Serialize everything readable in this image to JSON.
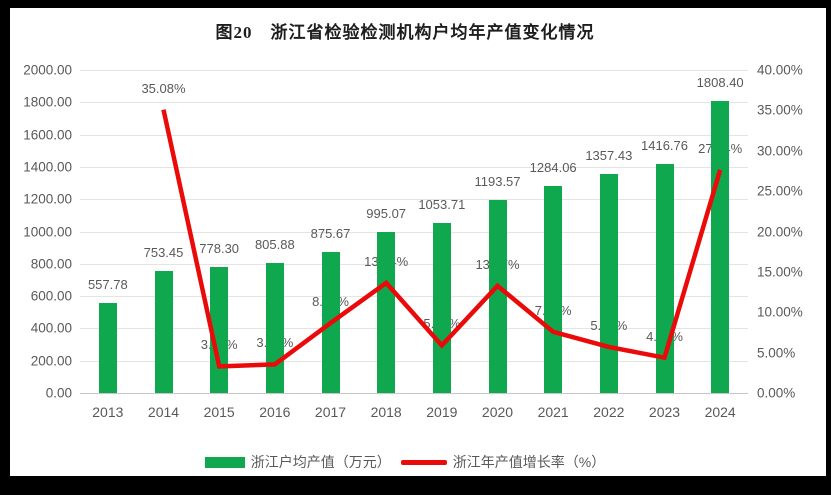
{
  "title": "图20　浙江省检验检测机构户均年产值变化情况",
  "chart_data": {
    "type": "bar",
    "subtype": "combo-bar-line-dual-axis",
    "categories": [
      "2013",
      "2014",
      "2015",
      "2016",
      "2017",
      "2018",
      "2019",
      "2020",
      "2021",
      "2022",
      "2023",
      "2024"
    ],
    "series": [
      {
        "name": "浙江户均产值（万元）",
        "type": "bar",
        "axis": "left",
        "color": "#0fa84e",
        "values": [
          557.78,
          753.45,
          778.3,
          805.88,
          875.67,
          995.07,
          1053.71,
          1193.57,
          1284.06,
          1357.43,
          1416.76,
          1808.4
        ],
        "labels": [
          "557.78",
          "753.45",
          "778.30",
          "805.88",
          "875.67",
          "995.07",
          "1053.71",
          "1193.57",
          "1284.06",
          "1357.43",
          "1416.76",
          "1808.40"
        ]
      },
      {
        "name": "浙江年产值增长率（%）",
        "type": "line",
        "axis": "right",
        "color": "#ea0a0a",
        "values": [
          null,
          35.08,
          3.3,
          3.54,
          8.66,
          13.64,
          5.89,
          13.27,
          7.58,
          5.71,
          4.37,
          27.64
        ],
        "labels": [
          null,
          "35.08%",
          "3.30%",
          "3.54%",
          "8.66%",
          "13.64%",
          "5.89%",
          "13.27%",
          "7.58%",
          "5.71%",
          "4.37%",
          "27.64%"
        ]
      }
    ],
    "title": "图20　浙江省检验检测机构户均年产值变化情况",
    "xlabel": "",
    "ylabel_left": "",
    "ylabel_right": "",
    "left_axis": {
      "min": 0,
      "max": 2000,
      "step": 200,
      "ticks": [
        "2000.00",
        "1800.00",
        "1600.00",
        "1400.00",
        "1200.00",
        "1000.00",
        "800.00",
        "600.00",
        "400.00",
        "200.00",
        "0.00"
      ]
    },
    "right_axis": {
      "min": 0,
      "max": 40,
      "step": 5,
      "ticks": [
        "40.00%",
        "35.00%",
        "30.00%",
        "25.00%",
        "20.00%",
        "15.00%",
        "10.00%",
        "5.00%",
        "0.00%"
      ]
    },
    "grid": true,
    "legend_position": "bottom"
  },
  "legend": {
    "bar_label": "浙江户均产值（万元）",
    "line_label": "浙江年产值增长率（%）"
  },
  "colors": {
    "bar": "#0fa84e",
    "line": "#ea0a0a",
    "grid": "#e4e4e4",
    "axis_text": "#595959",
    "title_text": "#1e1e1e",
    "frame": "#000000"
  }
}
